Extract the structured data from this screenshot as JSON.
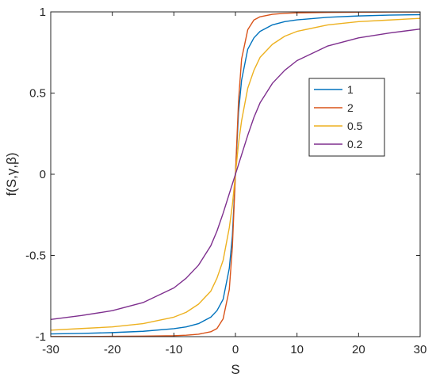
{
  "chart_data": {
    "type": "line",
    "title": "",
    "xlabel": "S",
    "ylabel": "f(S,γ,β)",
    "xlim": [
      -30,
      30
    ],
    "ylim": [
      -1,
      1
    ],
    "xticks": [
      -30,
      -20,
      -10,
      0,
      10,
      20,
      30
    ],
    "yticks": [
      -1,
      -0.5,
      0,
      0.5,
      1
    ],
    "xtick_labels": [
      "-30",
      "-20",
      "-10",
      "0",
      "10",
      "20",
      "30"
    ],
    "ytick_labels": [
      "-1",
      "-0.5",
      "0",
      "0.5",
      "1"
    ],
    "grid": false,
    "legend_position": "right-upper-middle",
    "x": [
      -30,
      -25,
      -20,
      -15,
      -10,
      -8,
      -6,
      -4,
      -3,
      -2,
      -1,
      -0.5,
      0,
      0.5,
      1,
      2,
      3,
      4,
      6,
      8,
      10,
      15,
      20,
      25,
      30
    ],
    "series": [
      {
        "name": "1",
        "color": "#0072BD",
        "values": [
          -0.983,
          -0.98,
          -0.975,
          -0.967,
          -0.951,
          -0.94,
          -0.92,
          -0.88,
          -0.84,
          -0.77,
          -0.58,
          -0.38,
          0,
          0.38,
          0.58,
          0.77,
          0.84,
          0.88,
          0.92,
          0.94,
          0.951,
          0.967,
          0.975,
          0.98,
          0.983
        ]
      },
      {
        "name": "2",
        "color": "#D95319",
        "values": [
          -0.999,
          -0.999,
          -0.998,
          -0.997,
          -0.994,
          -0.991,
          -0.985,
          -0.97,
          -0.95,
          -0.89,
          -0.71,
          -0.45,
          0,
          0.45,
          0.71,
          0.89,
          0.95,
          0.97,
          0.985,
          0.991,
          0.994,
          0.997,
          0.998,
          0.999,
          0.999
        ]
      },
      {
        "name": "0.5",
        "color": "#EDB120",
        "values": [
          -0.96,
          -0.95,
          -0.94,
          -0.92,
          -0.88,
          -0.85,
          -0.8,
          -0.72,
          -0.64,
          -0.53,
          -0.33,
          -0.19,
          0,
          0.19,
          0.33,
          0.53,
          0.64,
          0.72,
          0.8,
          0.85,
          0.88,
          0.92,
          0.94,
          0.95,
          0.96
        ]
      },
      {
        "name": "0.2",
        "color": "#7E2F8E",
        "values": [
          -0.894,
          -0.87,
          -0.84,
          -0.79,
          -0.7,
          -0.64,
          -0.56,
          -0.44,
          -0.35,
          -0.24,
          -0.12,
          -0.06,
          0,
          0.06,
          0.12,
          0.24,
          0.35,
          0.44,
          0.56,
          0.64,
          0.7,
          0.79,
          0.84,
          0.87,
          0.894
        ]
      }
    ]
  }
}
